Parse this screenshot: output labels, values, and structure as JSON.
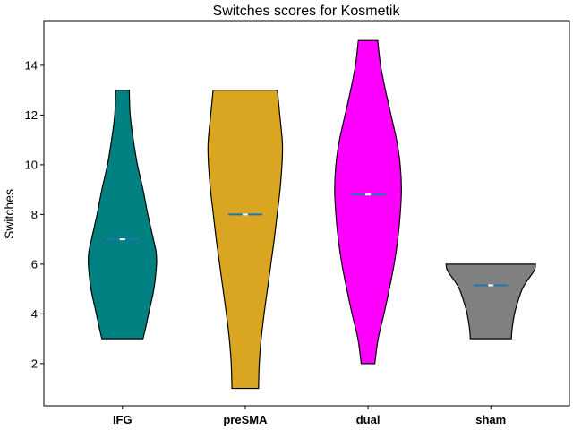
{
  "chart_data": {
    "type": "violin",
    "title": "Switches scores for Kosmetik",
    "xlabel": "",
    "ylabel": "Switches",
    "ylim": [
      0.3,
      15.8
    ],
    "yticks": [
      2,
      4,
      6,
      8,
      10,
      12,
      14
    ],
    "grid": false,
    "categories": [
      "IFG",
      "preSMA",
      "dual",
      "sham"
    ],
    "series": [
      {
        "category": "IFG",
        "color": "#008080",
        "min": 3,
        "max": 13,
        "mean": 7.0,
        "median": 7.0,
        "density": [
          [
            3,
            0.85
          ],
          [
            3.4,
            0.95
          ],
          [
            4,
            1.08
          ],
          [
            5,
            1.3
          ],
          [
            6,
            1.41
          ],
          [
            6.5,
            1.39
          ],
          [
            7,
            1.28
          ],
          [
            8,
            1.05
          ],
          [
            9,
            0.85
          ],
          [
            10,
            0.62
          ],
          [
            11,
            0.45
          ],
          [
            12,
            0.32
          ],
          [
            13,
            0.28
          ]
        ]
      },
      {
        "category": "preSMA",
        "color": "#DAA520",
        "min": 1,
        "max": 13,
        "mean": 8.0,
        "median": 8.0,
        "density": [
          [
            1,
            0.55
          ],
          [
            2,
            0.58
          ],
          [
            3,
            0.66
          ],
          [
            4,
            0.78
          ],
          [
            5,
            0.92
          ],
          [
            6,
            1.06
          ],
          [
            7,
            1.2
          ],
          [
            8,
            1.32
          ],
          [
            9,
            1.44
          ],
          [
            10,
            1.52
          ],
          [
            10.5,
            1.54
          ],
          [
            11,
            1.53
          ],
          [
            12,
            1.43
          ],
          [
            13,
            1.33
          ]
        ]
      },
      {
        "category": "dual",
        "color": "#FF00FF",
        "min": 2,
        "max": 15,
        "mean": 8.8,
        "median": 8.8,
        "density": [
          [
            2,
            0.28
          ],
          [
            3,
            0.42
          ],
          [
            4,
            0.66
          ],
          [
            5,
            0.88
          ],
          [
            6,
            1.08
          ],
          [
            7,
            1.23
          ],
          [
            8,
            1.33
          ],
          [
            9,
            1.38
          ],
          [
            10,
            1.33
          ],
          [
            11,
            1.18
          ],
          [
            12,
            0.95
          ],
          [
            13,
            0.72
          ],
          [
            14,
            0.52
          ],
          [
            15,
            0.4
          ]
        ]
      },
      {
        "category": "sham",
        "color": "#808080",
        "min": 3,
        "max": 6,
        "mean": 5.15,
        "median": 5.15,
        "density": [
          [
            3,
            0.85
          ],
          [
            3.4,
            0.88
          ],
          [
            4,
            0.98
          ],
          [
            4.5,
            1.12
          ],
          [
            5,
            1.3
          ],
          [
            5.3,
            1.48
          ],
          [
            5.6,
            1.7
          ],
          [
            5.8,
            1.82
          ],
          [
            6,
            1.85
          ]
        ]
      }
    ]
  }
}
